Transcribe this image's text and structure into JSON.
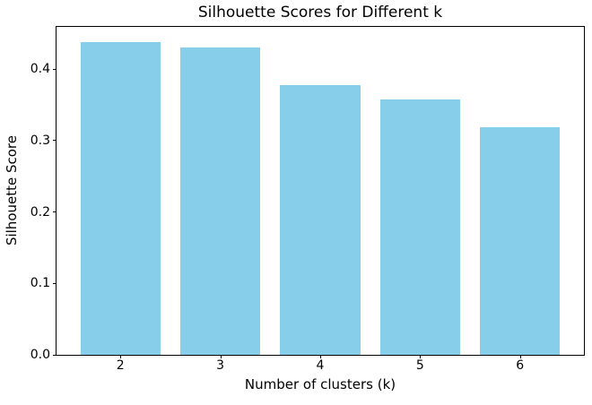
{
  "chart_data": {
    "type": "bar",
    "title": "Silhouette Scores for Different k",
    "xlabel": "Number of clusters (k)",
    "ylabel": "Silhouette Score",
    "categories": [
      "2",
      "3",
      "4",
      "5",
      "6"
    ],
    "x_positions": [
      2,
      3,
      4,
      5,
      6
    ],
    "values": [
      0.438,
      0.43,
      0.378,
      0.357,
      0.319
    ],
    "bar_color": "#87CEEB",
    "bar_width_units": 0.8,
    "xlim": [
      1.36,
      6.64
    ],
    "ylim": [
      0,
      0.459
    ],
    "yticks": [
      0.0,
      0.1,
      0.2,
      0.3,
      0.4
    ],
    "ytick_labels": [
      "0.0",
      "0.1",
      "0.2",
      "0.3",
      "0.4"
    ],
    "grid": false,
    "legend": null,
    "background": "#ffffff",
    "spine_color": "#000000",
    "text_color": "#000000"
  }
}
